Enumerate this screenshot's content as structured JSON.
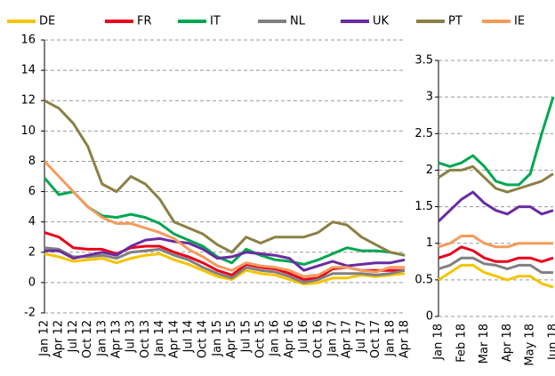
{
  "chart_data": [
    {
      "type": "line",
      "categories": [
        "Jan 12",
        "Apr 12",
        "Jul 12",
        "Oct 12",
        "Jan 13",
        "Apr 13",
        "Jul 13",
        "Oct 13",
        "Jan 14",
        "Apr 14",
        "Jul 14",
        "Oct 14",
        "Jan 15",
        "Apr 15",
        "Jul 15",
        "Oct 15",
        "Jan 16",
        "Apr 16",
        "Jul 16",
        "Oct 16",
        "Jan 17",
        "Apr 17",
        "Jul 17",
        "Oct 17",
        "Jan 18",
        "Apr 18"
      ],
      "ylim": [
        -2,
        16
      ],
      "yticks": [
        -2,
        0,
        2,
        4,
        6,
        8,
        10,
        12,
        14,
        16
      ],
      "grid": true,
      "series": [
        {
          "name": "DE",
          "color": "#f5c400",
          "values": [
            1.9,
            1.7,
            1.4,
            1.5,
            1.6,
            1.3,
            1.6,
            1.8,
            1.9,
            1.5,
            1.2,
            0.8,
            0.4,
            0.2,
            0.8,
            0.6,
            0.5,
            0.2,
            -0.1,
            0.0,
            0.3,
            0.3,
            0.5,
            0.4,
            0.5,
            0.6
          ]
        },
        {
          "name": "FR",
          "color": "#e8001c",
          "values": [
            3.3,
            3.0,
            2.3,
            2.2,
            2.2,
            1.9,
            2.3,
            2.4,
            2.4,
            2.0,
            1.7,
            1.3,
            0.8,
            0.5,
            1.2,
            1.0,
            0.9,
            0.6,
            0.2,
            0.3,
            0.9,
            1.0,
            0.8,
            0.8,
            0.8,
            0.8
          ]
        },
        {
          "name": "IT",
          "color": "#00a651",
          "values": [
            6.9,
            5.8,
            6.0,
            5.0,
            4.4,
            4.3,
            4.5,
            4.3,
            3.9,
            3.2,
            2.8,
            2.4,
            1.7,
            1.3,
            2.2,
            1.8,
            1.5,
            1.4,
            1.2,
            1.5,
            1.9,
            2.3,
            2.1,
            2.1,
            2.0,
            1.8
          ]
        },
        {
          "name": "NL",
          "color": "#808080",
          "values": [
            2.3,
            2.2,
            1.7,
            1.7,
            1.8,
            1.6,
            2.0,
            2.1,
            2.2,
            1.8,
            1.5,
            1.0,
            0.6,
            0.3,
            1.0,
            0.8,
            0.7,
            0.4,
            0.0,
            0.2,
            0.6,
            0.6,
            0.6,
            0.5,
            0.6,
            0.8
          ]
        },
        {
          "name": "UK",
          "color": "#6a2ca0",
          "values": [
            2.1,
            2.1,
            1.6,
            1.8,
            2.0,
            1.8,
            2.4,
            2.8,
            2.9,
            2.7,
            2.6,
            2.2,
            1.6,
            1.7,
            2.0,
            1.9,
            1.8,
            1.6,
            0.8,
            1.1,
            1.4,
            1.1,
            1.2,
            1.3,
            1.3,
            1.5
          ]
        },
        {
          "name": "PT",
          "color": "#8b8045",
          "values": [
            12.0,
            11.5,
            10.5,
            9.0,
            6.5,
            6.0,
            7.0,
            6.5,
            5.5,
            4.0,
            3.6,
            3.2,
            2.5,
            2.0,
            3.0,
            2.6,
            3.0,
            3.0,
            3.0,
            3.3,
            4.0,
            3.8,
            3.0,
            2.5,
            2.0,
            1.8
          ]
        },
        {
          "name": "IE",
          "color": "#f59a5a",
          "values": [
            8.0,
            7.0,
            6.0,
            5.0,
            4.3,
            3.9,
            3.9,
            3.6,
            3.3,
            2.9,
            2.2,
            1.7,
            1.1,
            0.8,
            1.3,
            1.1,
            1.0,
            0.8,
            0.4,
            0.5,
            1.0,
            1.0,
            0.8,
            0.7,
            1.0,
            1.0
          ]
        }
      ]
    },
    {
      "type": "line",
      "categories": [
        "Jan 18",
        null,
        "Feb 18",
        null,
        "Mar 18",
        null,
        "Apr 18",
        null,
        "May 18",
        null,
        "Jun 18"
      ],
      "ylim": [
        0,
        3.5
      ],
      "yticks": [
        0,
        0.5,
        1,
        1.5,
        2,
        2.5,
        3,
        3.5
      ],
      "grid": true,
      "series": [
        {
          "color": "#f5c400",
          "values": [
            0.5,
            0.6,
            0.7,
            0.7,
            0.6,
            0.55,
            0.5,
            0.55,
            0.55,
            0.45,
            0.4
          ]
        },
        {
          "color": "#e8001c",
          "values": [
            0.8,
            0.85,
            0.95,
            0.9,
            0.8,
            0.75,
            0.75,
            0.8,
            0.8,
            0.75,
            0.8
          ]
        },
        {
          "color": "#00a651",
          "values": [
            2.1,
            2.05,
            2.1,
            2.2,
            2.05,
            1.85,
            1.8,
            1.8,
            1.95,
            2.5,
            3.0
          ]
        },
        {
          "color": "#808080",
          "values": [
            0.65,
            0.7,
            0.8,
            0.8,
            0.72,
            0.7,
            0.65,
            0.7,
            0.7,
            0.6,
            0.6
          ]
        },
        {
          "color": "#6a2ca0",
          "values": [
            1.3,
            1.45,
            1.6,
            1.7,
            1.55,
            1.45,
            1.4,
            1.5,
            1.5,
            1.4,
            1.45
          ]
        },
        {
          "color": "#8b8045",
          "values": [
            1.9,
            2.0,
            2.0,
            2.05,
            1.9,
            1.75,
            1.7,
            1.75,
            1.8,
            1.85,
            1.95
          ]
        },
        {
          "color": "#f59a5a",
          "values": [
            0.95,
            1.0,
            1.1,
            1.1,
            1.0,
            0.95,
            0.95,
            1.0,
            1.0,
            1.0,
            1.0
          ]
        }
      ]
    }
  ]
}
